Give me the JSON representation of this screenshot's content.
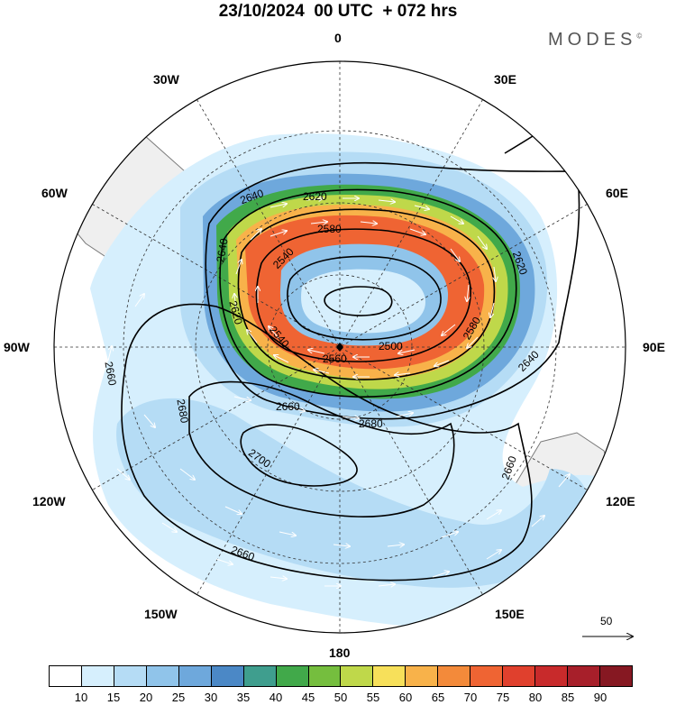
{
  "title": "23/10/2024  00 UTC  + 072 hrs",
  "brand": "MODES",
  "brand_mark": "©",
  "longitude_labels": {
    "lon_0": "0",
    "lon_30e": "30E",
    "lon_60e": "60E",
    "lon_90e": "90E",
    "lon_120e": "120E",
    "lon_150e": "150E",
    "lon_180": "180",
    "lon_150w": "150W",
    "lon_120w": "120W",
    "lon_90w": "90W",
    "lon_60w": "60W",
    "lon_30w": "30W"
  },
  "contour_labels": {
    "c1": "2640",
    "c2": "2620",
    "c3": "2580",
    "c4": "2620",
    "c5": "2640",
    "c6": "2620",
    "c7": "2540",
    "c8": "2640",
    "c9": "2540",
    "c10": "2560",
    "c11": "2500",
    "c12": "2580",
    "c13": "2660",
    "c14": "2680",
    "c15": "2660",
    "c16": "2680",
    "c17": "2700",
    "c18": "2660",
    "c19": "2660"
  },
  "vector_reference": "50",
  "legend": {
    "colors": [
      "#ffffff",
      "#d6effd",
      "#b5dcf5",
      "#90c4ea",
      "#6ea8dc",
      "#4b88c6",
      "#3f9e8e",
      "#41a94a",
      "#75be3e",
      "#bfd84a",
      "#f7e05a",
      "#f8b24a",
      "#f38a3a",
      "#ef6433",
      "#e0402d",
      "#c82a2b",
      "#a71f2a",
      "#861822"
    ],
    "ticks": [
      "10",
      "15",
      "20",
      "25",
      "30",
      "35",
      "40",
      "45",
      "50",
      "55",
      "60",
      "65",
      "70",
      "75",
      "80",
      "85",
      "90"
    ]
  },
  "colors": {
    "land": "#efefef",
    "coast": "#7a7a7a"
  }
}
